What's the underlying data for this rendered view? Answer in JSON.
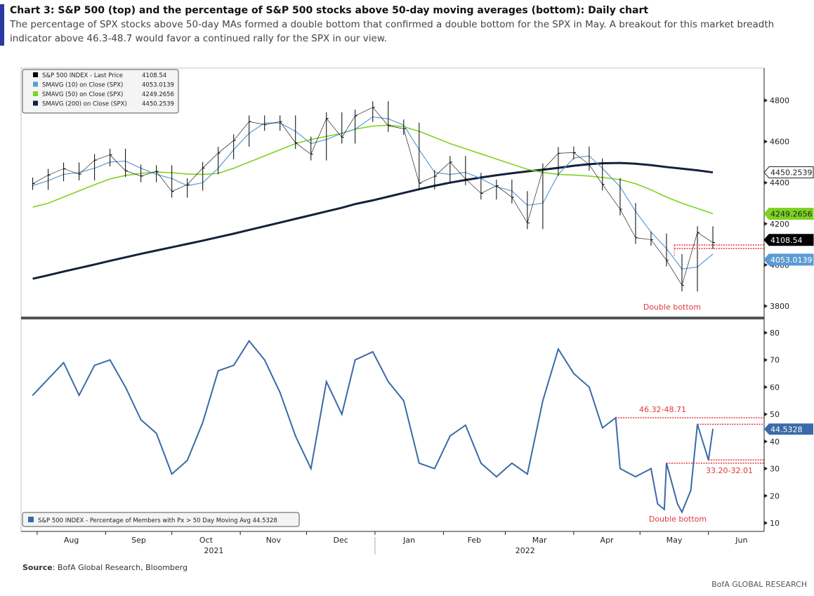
{
  "header": {
    "title": "Chart 3: S&P 500 (top) and the percentage of S&P 500 stocks above 50-day moving averages (bottom): Daily chart",
    "subtitle": "The percentage of SPX stocks above 50-day MAs formed a double bottom that confirmed a double bottom for the SPX in May. A breakout for this market breadth indicator above 46.3-48.7 would favor a continued rally for the SPX in our view."
  },
  "source_label": "Source",
  "source_text": ": BofA Global Research, Bloomberg",
  "footer": "BofA GLOBAL RESEARCH",
  "colors": {
    "price": "#000000",
    "ma10": "#5b9bd5",
    "ma50": "#7ed321",
    "ma200": "#14213d",
    "breadth": "#3a6aa8",
    "annotation": "#e0393e",
    "accent": "#2b3aa0"
  },
  "chart_data": [
    {
      "type": "line",
      "panel": "top",
      "ylim": [
        3750,
        4950
      ],
      "yticks": [
        3800,
        4000,
        4200,
        4400,
        4600,
        4800
      ],
      "grid": false,
      "legend_placement": "top-left",
      "x": [
        "2021-07-30",
        "2021-08-06",
        "2021-08-13",
        "2021-08-20",
        "2021-08-27",
        "2021-09-03",
        "2021-09-10",
        "2021-09-17",
        "2021-09-24",
        "2021-10-01",
        "2021-10-08",
        "2021-10-15",
        "2021-10-22",
        "2021-10-29",
        "2021-11-05",
        "2021-11-12",
        "2021-11-19",
        "2021-11-26",
        "2021-12-03",
        "2021-12-10",
        "2021-12-17",
        "2021-12-23",
        "2021-12-31",
        "2022-01-07",
        "2022-01-14",
        "2022-01-21",
        "2022-01-28",
        "2022-02-04",
        "2022-02-11",
        "2022-02-18",
        "2022-02-25",
        "2022-03-04",
        "2022-03-11",
        "2022-03-18",
        "2022-03-25",
        "2022-04-01",
        "2022-04-08",
        "2022-04-14",
        "2022-04-22",
        "2022-04-29",
        "2022-05-06",
        "2022-05-13",
        "2022-05-20",
        "2022-05-27",
        "2022-06-03"
      ],
      "series": [
        {
          "name": "S&P 500 INDEX - Last Price",
          "last": "4108.54",
          "values": [
            4395,
            4437,
            4468,
            4441,
            4509,
            4535,
            4458,
            4432,
            4455,
            4357,
            4391,
            4471,
            4544,
            4605,
            4697,
            4682,
            4697,
            4594,
            4538,
            4712,
            4620,
            4725,
            4766,
            4677,
            4662,
            4397,
            4431,
            4500,
            4418,
            4348,
            4385,
            4329,
            4204,
            4463,
            4543,
            4546,
            4488,
            4392,
            4271,
            4132,
            4123,
            4023,
            3901,
            4158,
            4109
          ]
        },
        {
          "name": "SMAVG (10)  on Close (SPX)",
          "last": "4053.0139",
          "values": [
            4385,
            4410,
            4440,
            4450,
            4470,
            4500,
            4505,
            4470,
            4440,
            4420,
            4385,
            4400,
            4470,
            4560,
            4640,
            4690,
            4690,
            4650,
            4590,
            4610,
            4640,
            4660,
            4720,
            4710,
            4680,
            4560,
            4450,
            4440,
            4450,
            4420,
            4380,
            4360,
            4290,
            4300,
            4440,
            4520,
            4530,
            4470,
            4380,
            4260,
            4160,
            4080,
            3980,
            3990,
            4053
          ]
        },
        {
          "name": "SMAVG (50)  on Close (SPX)",
          "last": "4249.2656",
          "values": [
            4281,
            4300,
            4330,
            4360,
            4390,
            4418,
            4435,
            4445,
            4452,
            4448,
            4442,
            4440,
            4445,
            4470,
            4500,
            4530,
            4560,
            4590,
            4610,
            4625,
            4640,
            4660,
            4675,
            4680,
            4672,
            4650,
            4620,
            4590,
            4565,
            4540,
            4515,
            4490,
            4465,
            4450,
            4440,
            4437,
            4432,
            4425,
            4415,
            4395,
            4365,
            4330,
            4300,
            4275,
            4249
          ]
        },
        {
          "name": "SMAVG (200)  on Close (SPX)",
          "last": "4450.2539",
          "values": [
            3933,
            3950,
            3968,
            3985,
            4002,
            4020,
            4037,
            4054,
            4070,
            4086,
            4102,
            4118,
            4135,
            4152,
            4170,
            4188,
            4206,
            4224,
            4242,
            4260,
            4278,
            4296,
            4314,
            4332,
            4350,
            4368,
            4385,
            4400,
            4413,
            4425,
            4436,
            4446,
            4455,
            4463,
            4472,
            4482,
            4490,
            4494,
            4496,
            4492,
            4485,
            4476,
            4468,
            4460,
            4450
          ]
        }
      ],
      "annotations": {
        "double_bottom": "Double bottom",
        "resistance_levels": [
          4097,
          4080
        ]
      }
    },
    {
      "type": "line",
      "panel": "bottom",
      "ylim": [
        8,
        83
      ],
      "yticks": [
        10,
        20,
        30,
        40,
        50,
        60,
        70,
        80
      ],
      "grid": false,
      "legend_placement": "bottom-left",
      "x": [
        "2021-07-30",
        "2021-08-06",
        "2021-08-13",
        "2021-08-20",
        "2021-08-27",
        "2021-09-03",
        "2021-09-10",
        "2021-09-17",
        "2021-09-24",
        "2021-10-01",
        "2021-10-08",
        "2021-10-15",
        "2021-10-22",
        "2021-10-29",
        "2021-11-05",
        "2021-11-12",
        "2021-11-19",
        "2021-11-26",
        "2021-12-03",
        "2021-12-10",
        "2021-12-17",
        "2021-12-23",
        "2021-12-31",
        "2022-01-07",
        "2022-01-14",
        "2022-01-21",
        "2022-01-28",
        "2022-02-04",
        "2022-02-11",
        "2022-02-18",
        "2022-02-25",
        "2022-03-04",
        "2022-03-11",
        "2022-03-18",
        "2022-03-25",
        "2022-04-01",
        "2022-04-08",
        "2022-04-14",
        "2022-04-20",
        "2022-04-22",
        "2022-04-29",
        "2022-05-06",
        "2022-05-09",
        "2022-05-12",
        "2022-05-13",
        "2022-05-18",
        "2022-05-20",
        "2022-05-24",
        "2022-05-27",
        "2022-06-01",
        "2022-06-03"
      ],
      "series": [
        {
          "name": "S&P 500 INDEX - Percentage of Members with Px > 50 Day Moving Avg",
          "last": "44.5328",
          "values": [
            57,
            63,
            69,
            57,
            68,
            70,
            60,
            48,
            43,
            28,
            33,
            47,
            66,
            68,
            77,
            70,
            58,
            42,
            30,
            62,
            50,
            70,
            73,
            62,
            55,
            32,
            30,
            42,
            46,
            32,
            27,
            32,
            28,
            55,
            74,
            65,
            60,
            45,
            48.71,
            30,
            27,
            30,
            17,
            15,
            32.01,
            17,
            14,
            22,
            46.32,
            33.2,
            44.53
          ]
        }
      ],
      "annotations": {
        "upper_range": "46.32-48.71",
        "lower_range": "33.20-32.01",
        "double_bottom": "Double bottom",
        "levels": [
          48.71,
          46.32,
          33.2,
          32.01
        ]
      }
    }
  ],
  "xaxis": {
    "months": [
      "Aug",
      "Sep",
      "Oct",
      "Nov",
      "Dec",
      "Jan",
      "Feb",
      "Mar",
      "Apr",
      "May",
      "Jun"
    ],
    "years": [
      "2021",
      "2022"
    ]
  }
}
